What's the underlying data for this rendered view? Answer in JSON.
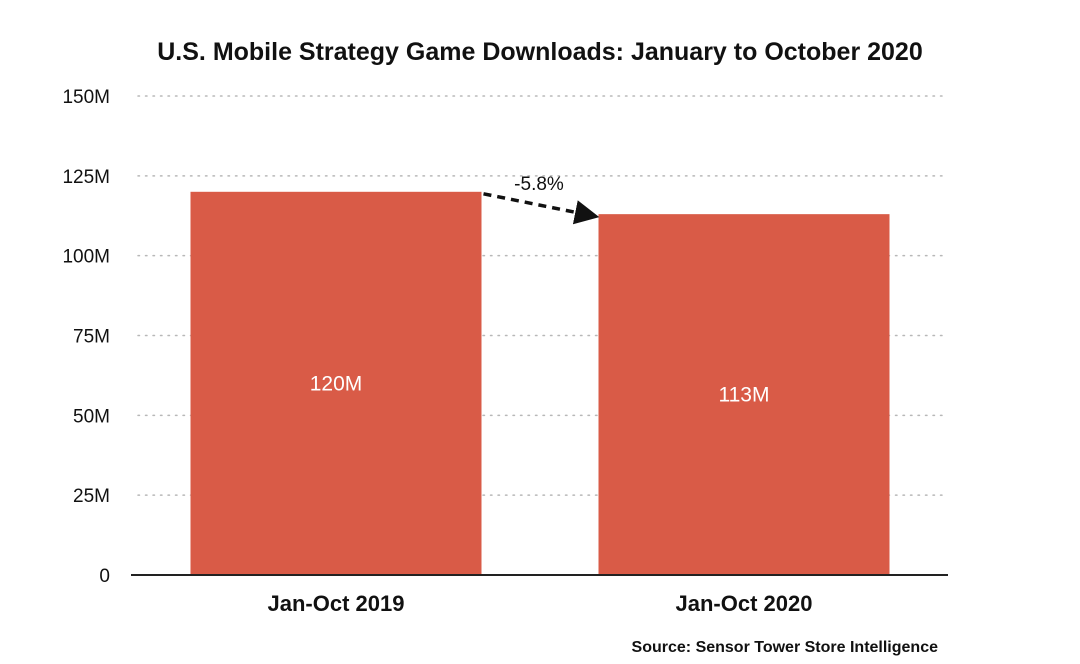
{
  "chart_data": {
    "type": "bar",
    "title": "U.S. Mobile Strategy Game Downloads: January to October 2020",
    "categories": [
      "Jan-Oct 2019",
      "Jan-Oct 2020"
    ],
    "values": [
      120,
      113
    ],
    "value_labels": [
      "120M",
      "113M"
    ],
    "unit": "M",
    "ylim": [
      0,
      150
    ],
    "yticks": [
      0,
      25,
      50,
      75,
      100,
      125,
      150
    ],
    "ytick_labels": [
      "0",
      "25M",
      "50M",
      "75M",
      "100M",
      "125M",
      "150M"
    ],
    "xlabel": "",
    "ylabel": "",
    "grid": true,
    "bar_color": "#d95b47",
    "annotation": {
      "label": "-5.8%",
      "from_category": "Jan-Oct 2019",
      "to_category": "Jan-Oct 2020",
      "style": "dashed-arrow"
    },
    "source": "Source: Sensor Tower Store Intelligence"
  }
}
